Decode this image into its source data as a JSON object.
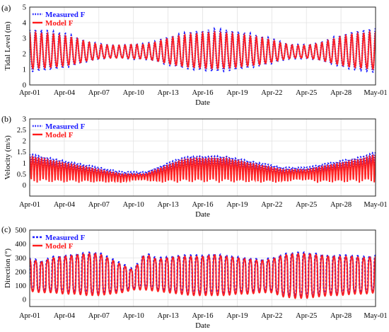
{
  "colors": {
    "measured": "#1a1aff",
    "model": "#ff1a1a",
    "grid": "#e2e2e2",
    "axis": "#222222"
  },
  "x_axis": {
    "ticks": [
      "Apr-01",
      "Apr-04",
      "Apr-07",
      "Apr-10",
      "Apr-13",
      "Apr-16",
      "Apr-19",
      "Apr-22",
      "Apr-25",
      "Apr-28",
      "May-01"
    ],
    "label": "Date",
    "range_days": [
      0,
      30
    ]
  },
  "chart_data": [
    {
      "panel": "(a)",
      "type": "line",
      "ylabel": "Tidal Level (m)",
      "ylim": [
        0,
        5
      ],
      "yticks": [
        "0",
        "1",
        "2",
        "3",
        "4",
        "5"
      ],
      "grid": true,
      "legend": "top-left",
      "series": [
        {
          "name": "Measured F",
          "style": "dotted",
          "color": "#1a1aff",
          "x": [
            0,
            1,
            2,
            3,
            4,
            5,
            6,
            7,
            8,
            9,
            10,
            11,
            12,
            13,
            14,
            15,
            16,
            17,
            18,
            19,
            20,
            21,
            22,
            23,
            24,
            25,
            26,
            27,
            28,
            29,
            30
          ],
          "tidal_range": [
            2.7,
            2.6,
            2.4,
            2.2,
            1.8,
            1.3,
            1.0,
            0.8,
            0.8,
            1.0,
            1.0,
            1.3,
            1.8,
            2.1,
            2.4,
            2.5,
            2.7,
            2.6,
            2.4,
            2.2,
            1.9,
            1.6,
            1.1,
            0.9,
            0.9,
            1.1,
            1.6,
            2.0,
            2.4,
            2.6,
            2.8
          ],
          "mean_level": [
            2.1,
            2.1,
            2.1,
            2.1,
            2.1,
            2.1,
            2.1,
            2.1,
            2.1,
            2.1,
            2.1,
            2.1,
            2.1,
            2.1,
            2.1,
            2.1,
            2.1,
            2.1,
            2.1,
            2.1,
            2.1,
            2.1,
            2.1,
            2.1,
            2.1,
            2.1,
            2.1,
            2.1,
            2.1,
            2.1,
            2.1
          ]
        },
        {
          "name": "Model F",
          "style": "solid",
          "color": "#ff1a1a",
          "x": [
            0,
            1,
            2,
            3,
            4,
            5,
            6,
            7,
            8,
            9,
            10,
            11,
            12,
            13,
            14,
            15,
            16,
            17,
            18,
            19,
            20,
            21,
            22,
            23,
            24,
            25,
            26,
            27,
            28,
            29,
            30
          ],
          "tidal_range": [
            2.3,
            2.2,
            2.1,
            1.9,
            1.6,
            1.2,
            0.9,
            0.8,
            0.8,
            0.9,
            0.9,
            1.2,
            1.6,
            1.9,
            2.1,
            2.2,
            2.3,
            2.2,
            2.1,
            1.9,
            1.7,
            1.4,
            1.0,
            0.8,
            0.8,
            1.0,
            1.4,
            1.8,
            2.1,
            2.2,
            2.4
          ],
          "mean_level": [
            2.1,
            2.1,
            2.1,
            2.1,
            2.1,
            2.1,
            2.1,
            2.1,
            2.1,
            2.1,
            2.1,
            2.1,
            2.1,
            2.1,
            2.1,
            2.1,
            2.1,
            2.1,
            2.1,
            2.1,
            2.1,
            2.1,
            2.1,
            2.1,
            2.1,
            2.1,
            2.1,
            2.1,
            2.1,
            2.1,
            2.1
          ]
        }
      ]
    },
    {
      "panel": "(b)",
      "type": "line",
      "ylabel": "Velocity (m/s)",
      "ylim": [
        -0.5,
        3
      ],
      "yticks": [
        "0",
        "0.5",
        "1",
        "1.5",
        "2",
        "2.5",
        "3"
      ],
      "grid": true,
      "legend": "top-left",
      "series": [
        {
          "name": "Measured F",
          "style": "dotted",
          "color": "#1a1aff",
          "x": [
            0,
            1,
            2,
            3,
            4,
            5,
            6,
            7,
            8,
            9,
            10,
            11,
            12,
            13,
            14,
            15,
            16,
            17,
            18,
            19,
            20,
            21,
            22,
            23,
            24,
            25,
            26,
            27,
            28,
            29,
            30
          ],
          "peak": [
            1.4,
            1.3,
            1.2,
            1.1,
            1.0,
            0.9,
            0.8,
            0.7,
            0.6,
            0.6,
            0.6,
            0.8,
            1.0,
            1.2,
            1.3,
            1.3,
            1.3,
            1.3,
            1.2,
            1.1,
            1.0,
            0.9,
            0.8,
            0.8,
            0.8,
            0.9,
            1.0,
            1.1,
            1.2,
            1.3,
            1.5
          ],
          "trough": [
            0.6,
            0.6,
            0.6,
            0.5,
            0.5,
            0.4,
            0.3,
            0.3,
            0.3,
            0.3,
            0.3,
            0.4,
            0.5,
            0.6,
            0.6,
            0.6,
            0.6,
            0.6,
            0.6,
            0.5,
            0.5,
            0.5,
            0.4,
            0.5,
            0.5,
            0.5,
            0.6,
            0.6,
            0.7,
            0.7,
            0.8
          ]
        },
        {
          "name": "Model F",
          "style": "solid",
          "color": "#ff1a1a",
          "x": [
            0,
            1,
            2,
            3,
            4,
            5,
            6,
            7,
            8,
            9,
            10,
            11,
            12,
            13,
            14,
            15,
            16,
            17,
            18,
            19,
            20,
            21,
            22,
            23,
            24,
            25,
            26,
            27,
            28,
            29,
            30
          ],
          "peak": [
            1.3,
            1.2,
            1.1,
            1.0,
            0.9,
            0.8,
            0.7,
            0.6,
            0.5,
            0.5,
            0.5,
            0.7,
            0.9,
            1.1,
            1.2,
            1.2,
            1.2,
            1.2,
            1.1,
            1.0,
            0.9,
            0.8,
            0.7,
            0.7,
            0.7,
            0.8,
            0.9,
            1.0,
            1.1,
            1.2,
            1.4
          ],
          "trough": [
            0.1,
            0.1,
            0.1,
            0.1,
            0.1,
            0.1,
            0.1,
            0.1,
            0.1,
            0.2,
            0.2,
            0.1,
            0.1,
            0.1,
            0.1,
            0.1,
            0.1,
            0.1,
            0.1,
            0.1,
            0.1,
            0.1,
            0.1,
            0.2,
            0.2,
            0.1,
            0.1,
            0.1,
            0.1,
            0.1,
            0.1
          ]
        }
      ]
    },
    {
      "panel": "(c)",
      "type": "line",
      "ylabel": "Direction (°)",
      "ylim": [
        -50,
        500
      ],
      "yticks": [
        "0",
        "100",
        "200",
        "300",
        "400",
        "500"
      ],
      "grid": true,
      "legend": "top-left",
      "series": [
        {
          "name": "Measured F",
          "style": "dashed",
          "color": "#1a1aff",
          "x": [
            0,
            1,
            2,
            3,
            4,
            5,
            6,
            7,
            8,
            9,
            10,
            11,
            12,
            13,
            14,
            15,
            16,
            17,
            18,
            19,
            20,
            21,
            22,
            23,
            24,
            25,
            26,
            27,
            28,
            29,
            30
          ],
          "high": [
            300,
            280,
            310,
            320,
            330,
            340,
            340,
            300,
            260,
            220,
            340,
            300,
            310,
            320,
            320,
            320,
            330,
            320,
            310,
            300,
            290,
            300,
            330,
            340,
            340,
            330,
            320,
            320,
            320,
            310,
            320
          ],
          "low": [
            70,
            60,
            60,
            50,
            50,
            40,
            40,
            50,
            60,
            80,
            80,
            70,
            60,
            50,
            40,
            40,
            40,
            40,
            50,
            50,
            60,
            60,
            30,
            20,
            20,
            30,
            40,
            40,
            50,
            50,
            60
          ]
        },
        {
          "name": "Model F",
          "style": "solid",
          "color": "#ff1a1a",
          "x": [
            0,
            1,
            2,
            3,
            4,
            5,
            6,
            7,
            8,
            9,
            10,
            11,
            12,
            13,
            14,
            15,
            16,
            17,
            18,
            19,
            20,
            21,
            22,
            23,
            24,
            25,
            26,
            27,
            28,
            29,
            30
          ],
          "high": [
            290,
            270,
            300,
            310,
            320,
            330,
            330,
            290,
            250,
            210,
            330,
            290,
            300,
            310,
            310,
            310,
            320,
            310,
            300,
            290,
            280,
            290,
            320,
            330,
            330,
            320,
            310,
            310,
            310,
            300,
            310
          ],
          "low": [
            60,
            50,
            50,
            40,
            40,
            30,
            30,
            40,
            50,
            70,
            70,
            60,
            50,
            40,
            30,
            30,
            30,
            30,
            40,
            40,
            50,
            50,
            20,
            10,
            10,
            20,
            30,
            30,
            40,
            40,
            50
          ]
        }
      ]
    }
  ]
}
